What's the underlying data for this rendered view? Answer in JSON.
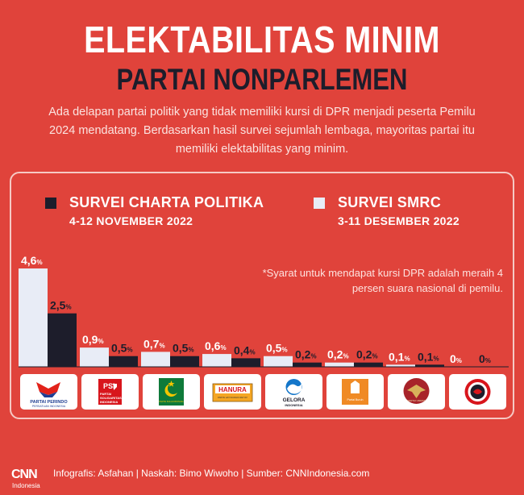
{
  "header": {
    "title": "ELEKTABILITAS MINIM",
    "subtitle": "PARTAI NONPARLEMEN",
    "intro": "Ada delapan partai politik yang tidak memiliki kursi di DPR menjadi peserta Pemilu 2024 mendatang. Berdasarkan hasil survei sejumlah lembaga, mayoritas partai itu memiliki elektabilitas yang minim."
  },
  "legend": [
    {
      "name": "SURVEI CHARTA POLITIKA",
      "date": "4-12 NOVEMBER 2022",
      "color": "#1d1d2b"
    },
    {
      "name": "SURVEI SMRC",
      "date": "3-11 DESEMBER 2022",
      "color": "#e8ecf6"
    }
  ],
  "note": "*Syarat untuk mendapat kursi DPR adalah meraih 4 persen suara nasional di pemilu.",
  "chart_data": {
    "type": "bar",
    "categories": [
      "PARTAI PERINDO",
      "PSI",
      "PARTAI BULAN BINTANG",
      "HANURA",
      "GELORA INDONESIA",
      "PARTAI BURUH",
      "PARTAI UMMAT",
      "PARTAI KEBANGKITAN NUSANTARA"
    ],
    "series": [
      {
        "name": "SURVEI SMRC",
        "values": [
          4.6,
          0.9,
          0.7,
          0.6,
          0.5,
          0.2,
          0.1,
          0
        ],
        "color": "#e8ecf6"
      },
      {
        "name": "SURVEI CHARTA POLITIKA",
        "values": [
          2.5,
          0.5,
          0.5,
          0.4,
          0.2,
          0.2,
          0.1,
          0
        ],
        "color": "#1d1d2b"
      }
    ],
    "labels": [
      [
        "4,6",
        "0,9",
        "0,7",
        "0,6",
        "0,5",
        "0,2",
        "0,1",
        "0"
      ],
      [
        "2,5",
        "0,5",
        "0,5",
        "0,4",
        "0,2",
        "0,2",
        "0,1",
        "0"
      ]
    ],
    "unit": "%",
    "ylim": [
      0,
      4.6
    ],
    "grid": false
  },
  "logos": {
    "perindo": {
      "line1": "PARTAI PERINDO",
      "line2": "PERSATUAN INDONESIA"
    },
    "psi": {
      "badge": "PSI",
      "line1": "PARTAI",
      "line2": "SOLIDARITAS",
      "line3": "INDONESIA"
    },
    "pbb": {
      "text": "PARTAI BULAN BINTANG"
    },
    "hanura": {
      "text": "HANURA",
      "sub": "PARTAI HATI NURANI RAKYAT"
    },
    "gelora": {
      "line1": "GELORA",
      "line2": "INDONESIA"
    },
    "buruh": {
      "text": "Partai Buruh"
    },
    "ummat": {
      "text": "PARTAI UMMAT"
    }
  },
  "footer": {
    "logo": "CNN",
    "logo_sub": "Indonesia",
    "credits": "Infografis: Asfahan | Naskah: Bimo Wiwoho | Sumber: CNNIndonesia.com"
  },
  "colors": {
    "background": "#e0433b",
    "dark": "#1d1d2b",
    "light": "#e8ecf6"
  }
}
